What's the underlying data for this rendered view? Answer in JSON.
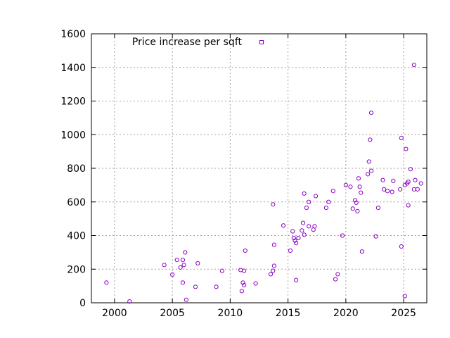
{
  "chart_data": {
    "type": "scatter",
    "title": "",
    "xlabel": "",
    "ylabel": "",
    "xlim": [
      1998,
      2027
    ],
    "ylim": [
      0,
      1600
    ],
    "xticks": [
      2000,
      2005,
      2010,
      2015,
      2020,
      2025
    ],
    "yticks": [
      0,
      200,
      400,
      600,
      800,
      1000,
      1200,
      1400,
      1600
    ],
    "grid": true,
    "legend_position": "top",
    "marker_color": "#8b00c4",
    "series": [
      {
        "name": "Price increase per sqft",
        "points": [
          [
            1999.3,
            120
          ],
          [
            2001.3,
            8
          ],
          [
            2004.3,
            225
          ],
          [
            2005.0,
            168
          ],
          [
            2005.4,
            255
          ],
          [
            2005.7,
            210
          ],
          [
            2005.9,
            255
          ],
          [
            2005.9,
            120
          ],
          [
            2006.0,
            225
          ],
          [
            2006.1,
            300
          ],
          [
            2006.2,
            18
          ],
          [
            2007.0,
            95
          ],
          [
            2007.2,
            235
          ],
          [
            2008.8,
            95
          ],
          [
            2009.3,
            190
          ],
          [
            2010.9,
            195
          ],
          [
            2011.0,
            70
          ],
          [
            2011.1,
            120
          ],
          [
            2011.2,
            190
          ],
          [
            2011.2,
            105
          ],
          [
            2011.3,
            310
          ],
          [
            2012.2,
            115
          ],
          [
            2013.5,
            170
          ],
          [
            2013.7,
            190
          ],
          [
            2013.7,
            585
          ],
          [
            2013.8,
            220
          ],
          [
            2013.8,
            345
          ],
          [
            2014.6,
            460
          ],
          [
            2015.2,
            310
          ],
          [
            2015.4,
            425
          ],
          [
            2015.5,
            385
          ],
          [
            2015.6,
            370
          ],
          [
            2015.7,
            355
          ],
          [
            2015.7,
            135
          ],
          [
            2015.9,
            385
          ],
          [
            2016.2,
            430
          ],
          [
            2016.3,
            475
          ],
          [
            2016.4,
            650
          ],
          [
            2016.4,
            405
          ],
          [
            2016.6,
            565
          ],
          [
            2016.8,
            455
          ],
          [
            2016.8,
            600
          ],
          [
            2017.2,
            435
          ],
          [
            2017.3,
            455
          ],
          [
            2017.4,
            635
          ],
          [
            2018.3,
            565
          ],
          [
            2018.5,
            600
          ],
          [
            2018.9,
            665
          ],
          [
            2019.1,
            140
          ],
          [
            2019.3,
            170
          ],
          [
            2019.7,
            400
          ],
          [
            2020.0,
            700
          ],
          [
            2020.4,
            690
          ],
          [
            2020.6,
            560
          ],
          [
            2020.8,
            610
          ],
          [
            2020.9,
            595
          ],
          [
            2021.0,
            545
          ],
          [
            2021.1,
            740
          ],
          [
            2021.2,
            690
          ],
          [
            2021.3,
            655
          ],
          [
            2021.4,
            305
          ],
          [
            2021.9,
            765
          ],
          [
            2022.0,
            840
          ],
          [
            2022.1,
            970
          ],
          [
            2022.2,
            1130
          ],
          [
            2022.2,
            785
          ],
          [
            2022.6,
            395
          ],
          [
            2022.8,
            565
          ],
          [
            2023.2,
            730
          ],
          [
            2023.3,
            675
          ],
          [
            2023.6,
            665
          ],
          [
            2024.0,
            660
          ],
          [
            2024.1,
            725
          ],
          [
            2024.7,
            675
          ],
          [
            2024.8,
            980
          ],
          [
            2024.8,
            335
          ],
          [
            2025.1,
            700
          ],
          [
            2025.1,
            40
          ],
          [
            2025.2,
            915
          ],
          [
            2025.3,
            710
          ],
          [
            2025.4,
            720
          ],
          [
            2025.4,
            580
          ],
          [
            2025.6,
            795
          ],
          [
            2025.9,
            675
          ],
          [
            2025.9,
            1415
          ],
          [
            2026.0,
            730
          ],
          [
            2026.2,
            675
          ],
          [
            2026.5,
            710
          ]
        ]
      }
    ]
  }
}
